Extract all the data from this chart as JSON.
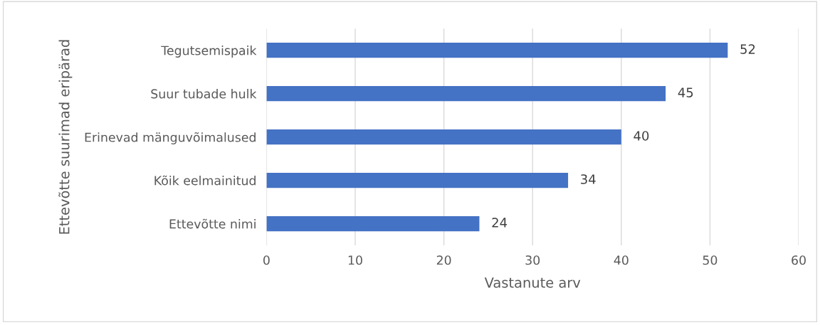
{
  "chart_data": {
    "type": "bar",
    "orientation": "horizontal",
    "categories": [
      "Tegutsemispaik",
      "Suur tubade hulk",
      "Erinevad mänguvõimalused",
      "Kõik eelmainitud",
      "Ettevõtte nimi"
    ],
    "values": [
      52,
      45,
      40,
      34,
      24
    ],
    "color": "#4472c4",
    "xlim": [
      0,
      60
    ],
    "xticks": [
      0,
      10,
      20,
      30,
      40,
      50,
      60
    ],
    "grid": "x",
    "data_labels": true,
    "xlabel": "Vastanute arv",
    "ylabel": "Ettevõtte suurimad eripärad",
    "legend": false
  }
}
